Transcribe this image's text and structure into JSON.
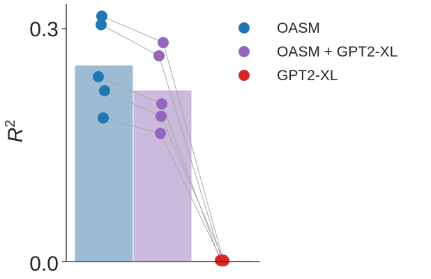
{
  "chart_data": {
    "type": "bar",
    "title": "",
    "xlabel": "",
    "ylabel": "R",
    "ylabel_superscript": "2",
    "ylim": [
      0.0,
      0.3
    ],
    "yticks": [
      "0.0",
      "0.3"
    ],
    "grid": false,
    "legend_position": "top-right",
    "categories": [
      "OASM",
      "OASM + GPT2-XL",
      "GPT2-XL"
    ],
    "bar_values": [
      0.253,
      0.221,
      0.0015
    ],
    "bar_colors": [
      "#9dbcd4",
      "#cbbadb",
      "#f4a9a1"
    ],
    "point_colors": [
      "#1f77b4",
      "#9467bd",
      "#d62728"
    ],
    "legend": [
      {
        "label": "OASM",
        "color": "#1f77b4"
      },
      {
        "label": "OASM + GPT2-XL",
        "color": "#9467bd"
      },
      {
        "label": "GPT2-XL",
        "color": "#d62728"
      }
    ],
    "subjects": [
      {
        "values": [
          0.316,
          0.282,
          0.002
        ]
      },
      {
        "values": [
          0.305,
          0.265,
          0.002
        ]
      },
      {
        "values": [
          0.238,
          0.203,
          0.0015
        ]
      },
      {
        "values": [
          0.22,
          0.187,
          0.001
        ]
      },
      {
        "values": [
          0.185,
          0.165,
          0.001
        ]
      }
    ]
  }
}
